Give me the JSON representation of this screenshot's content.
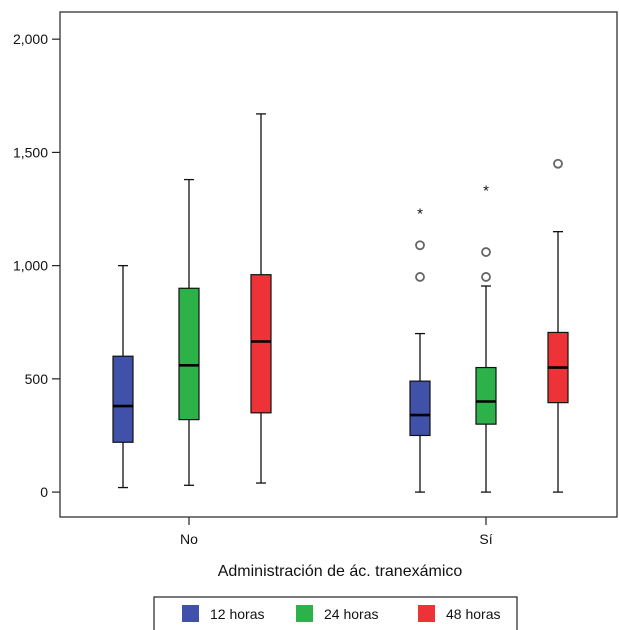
{
  "chart_data": {
    "type": "box",
    "xlabel": "Administración de ác. tranexámico",
    "ylabel": "",
    "ylim": [
      -110,
      2120
    ],
    "y_ticks": [
      0,
      500,
      1000,
      1500,
      2000
    ],
    "y_tick_labels": [
      "0",
      "500",
      "1,000",
      "1,500",
      "2,000"
    ],
    "categories": [
      "No",
      "Sí"
    ],
    "legend_position": "bottom",
    "series": [
      {
        "name": "12 horas",
        "color": "#3f51a8",
        "boxes": [
          {
            "min": 20,
            "q1": 220,
            "median": 380,
            "q3": 600,
            "max": 1000,
            "outliers": [],
            "extremes": []
          },
          {
            "min": 0,
            "q1": 250,
            "median": 340,
            "q3": 490,
            "max": 700,
            "outliers": [
              950,
              1090
            ],
            "extremes": [
              1240
            ]
          }
        ]
      },
      {
        "name": "24 horas",
        "color": "#2db24a",
        "boxes": [
          {
            "min": 30,
            "q1": 320,
            "median": 560,
            "q3": 900,
            "max": 1380,
            "outliers": [],
            "extremes": []
          },
          {
            "min": 0,
            "q1": 300,
            "median": 400,
            "q3": 550,
            "max": 910,
            "outliers": [
              950,
              1060
            ],
            "extremes": [
              1340
            ]
          }
        ]
      },
      {
        "name": "48 horas",
        "color": "#ee3338",
        "boxes": [
          {
            "min": 40,
            "q1": 350,
            "median": 665,
            "q3": 960,
            "max": 1670,
            "outliers": [],
            "extremes": []
          },
          {
            "min": 0,
            "q1": 395,
            "median": 550,
            "q3": 705,
            "max": 1150,
            "outliers": [
              1450
            ],
            "extremes": []
          }
        ]
      }
    ]
  }
}
